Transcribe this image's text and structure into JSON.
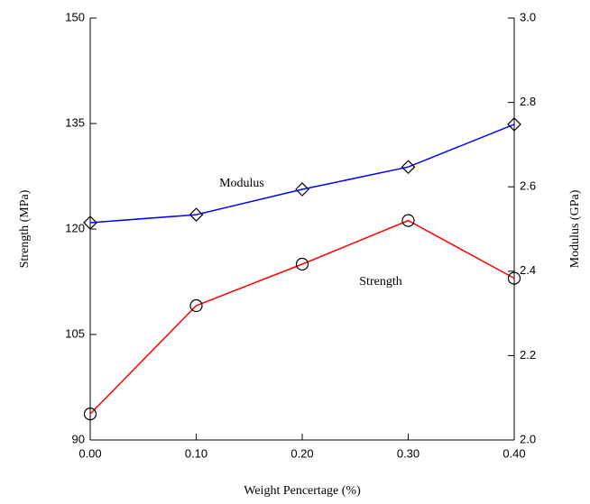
{
  "chart_data": {
    "type": "line",
    "x_label": "Weight Pencertage (%)",
    "y_label": "Strength (MPa)",
    "y2_label": "Modulus (GPa)",
    "x": [
      0,
      0.1,
      0.2,
      0.3,
      0.4
    ],
    "xlim": [
      0,
      0.4
    ],
    "xticks": [
      {
        "value": 0,
        "label": "0.00"
      },
      {
        "value": 0.1,
        "label": "0.10"
      },
      {
        "value": 0.2,
        "label": "0.20"
      },
      {
        "value": 0.3,
        "label": "0.30"
      },
      {
        "value": 0.4,
        "label": "0.40"
      }
    ],
    "ylim": [
      90,
      150
    ],
    "yticks": [
      90,
      105,
      120,
      135,
      150
    ],
    "y2lim": [
      2,
      3
    ],
    "y2ticks": [
      {
        "value": 2,
        "label": "2.0"
      },
      2.2,
      2.4,
      2.6,
      2.8,
      {
        "value": 3,
        "label": "3.0"
      }
    ],
    "series": [
      {
        "name": "Strength",
        "color": "#ff0000",
        "marker": "circle",
        "values": [
          93.7,
          109.1,
          115,
          121.2,
          113
        ]
      },
      {
        "name": "Modulus",
        "color": "#0000ff",
        "marker": "diamond",
        "axis": "y2",
        "values": [
          2.515,
          2.534,
          2.594,
          2.647,
          2.748
        ]
      }
    ]
  }
}
